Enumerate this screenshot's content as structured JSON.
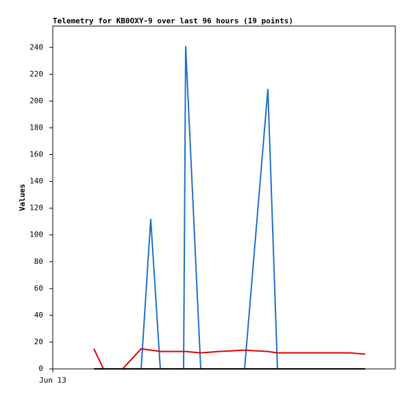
{
  "chart_data": {
    "type": "line",
    "title": "Telemetry for KB0OXY-9 over last 96 hours (19 points)",
    "y_label": "Values",
    "x": [
      12,
      14.8,
      20.4,
      25.8,
      28.6,
      31.4,
      38.2,
      38.8,
      43.2,
      48.6,
      56,
      62.8,
      65.6,
      70.6,
      74.6,
      78.6,
      82.6,
      86.6,
      91.2
    ],
    "series": [
      {
        "color": "#1f6fc6",
        "values": [
          0,
          0,
          0,
          0,
          112,
          0,
          0,
          241,
          0,
          0,
          0,
          209,
          0,
          0,
          0,
          0,
          0,
          0,
          0
        ]
      },
      {
        "color": "#e00000",
        "values": [
          15,
          0,
          0,
          15,
          14,
          13,
          13,
          13,
          12,
          13,
          14,
          13,
          12,
          12,
          12,
          12,
          12,
          12,
          11
        ]
      },
      {
        "color": "#000000",
        "values": [
          0,
          0,
          0,
          0,
          0,
          0,
          0,
          0,
          0,
          0,
          0,
          0,
          0,
          0,
          0,
          0,
          0,
          0,
          0
        ]
      }
    ],
    "xlim": [
      0,
      100
    ],
    "xticks": [
      {
        "value": 0,
        "label": "Jun 13"
      }
    ],
    "ylim": [
      0,
      256
    ],
    "yticks": [
      0,
      20,
      40,
      60,
      80,
      100,
      120,
      140,
      160,
      180,
      200,
      220,
      240
    ]
  }
}
